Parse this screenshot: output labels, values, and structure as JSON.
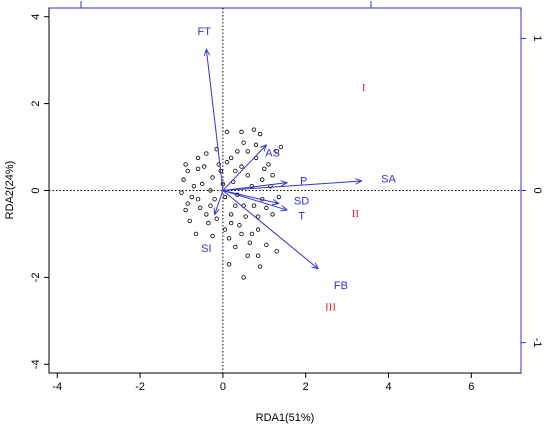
{
  "chart_data": {
    "type": "scatter",
    "title": "",
    "xlabel": "RDA1(51%)",
    "ylabel": "RDA2(24%)",
    "xlim": [
      -4.2,
      7.2
    ],
    "ylim": [
      -4.2,
      4.2
    ],
    "x_ticks": [
      "-4",
      "-2",
      "0",
      "2",
      "4",
      "6"
    ],
    "y_ticks": [
      "-4",
      "-2",
      "0",
      "2",
      "4"
    ],
    "right_axis": {
      "range": [
        -1.2,
        1.2
      ],
      "ticks": [
        "-1",
        "0",
        "1"
      ],
      "color": "#3333cc"
    },
    "top_axis_color": "#3333cc",
    "reference_lines": {
      "x0": true,
      "y0": true,
      "style": "dotted"
    },
    "colors": {
      "points": "#000000",
      "vectors": "#3333cc",
      "groups": "#dd2222"
    },
    "vectors": [
      {
        "name": "FT",
        "x": -0.4,
        "y": 3.25,
        "lx": -0.45,
        "ly": 3.65
      },
      {
        "name": "AS",
        "x": 1.05,
        "y": 1.05,
        "lx": 1.2,
        "ly": 0.85
      },
      {
        "name": "SA",
        "x": 3.35,
        "y": 0.22,
        "lx": 4.0,
        "ly": 0.25
      },
      {
        "name": "P",
        "x": 1.55,
        "y": 0.18,
        "lx": 1.95,
        "ly": 0.2
      },
      {
        "name": "SD",
        "x": 1.35,
        "y": -0.3,
        "lx": 1.9,
        "ly": -0.25
      },
      {
        "name": "T",
        "x": 1.55,
        "y": -0.45,
        "lx": 1.9,
        "ly": -0.6
      },
      {
        "name": "FB",
        "x": 2.3,
        "y": -1.8,
        "lx": 2.85,
        "ly": -2.2
      },
      {
        "name": "SI",
        "x": -0.2,
        "y": -0.55,
        "lx": -0.4,
        "ly": -1.35
      }
    ],
    "groups": [
      {
        "name": "I",
        "x": 3.4,
        "y": 2.35
      },
      {
        "name": "II",
        "x": 3.2,
        "y": -0.55
      },
      {
        "name": "III",
        "x": 2.6,
        "y": -2.7
      }
    ],
    "points": [
      [
        0.5,
        1.1
      ],
      [
        0.35,
        0.9
      ],
      [
        0.8,
        1.05
      ],
      [
        0.2,
        0.75
      ],
      [
        -0.1,
        0.6
      ],
      [
        -0.4,
        0.85
      ],
      [
        -0.6,
        0.5
      ],
      [
        0.1,
        1.35
      ],
      [
        0.75,
        1.4
      ],
      [
        1.1,
        0.6
      ],
      [
        -0.25,
        0.3
      ],
      [
        -0.85,
        0.45
      ],
      [
        -0.7,
        0.1
      ],
      [
        -1.0,
        -0.05
      ],
      [
        -0.9,
        -0.45
      ],
      [
        -0.6,
        -0.2
      ],
      [
        -0.3,
        -0.35
      ],
      [
        0.2,
        -0.55
      ],
      [
        0.5,
        -0.35
      ],
      [
        0.85,
        -0.6
      ],
      [
        1.2,
        -0.55
      ],
      [
        0.4,
        -0.8
      ],
      [
        0.05,
        -0.9
      ],
      [
        -0.25,
        -1.05
      ],
      [
        -0.8,
        -0.7
      ],
      [
        -0.4,
        -0.55
      ],
      [
        0.7,
        -1.0
      ],
      [
        1.05,
        -1.25
      ],
      [
        0.3,
        -1.3
      ],
      [
        0.6,
        -1.5
      ],
      [
        0.9,
        -1.75
      ],
      [
        0.15,
        -1.7
      ],
      [
        0.5,
        -2.0
      ],
      [
        0.25,
        0.2
      ],
      [
        0.6,
        0.35
      ],
      [
        0.95,
        0.25
      ],
      [
        -0.5,
        0.15
      ],
      [
        0.05,
        -0.15
      ],
      [
        0.35,
        -0.1
      ],
      [
        -0.15,
        0.95
      ],
      [
        0.45,
        0.55
      ],
      [
        -0.35,
        -0.75
      ],
      [
        0.8,
        0.75
      ],
      [
        1.3,
        0.9
      ],
      [
        -0.05,
        0.45
      ],
      [
        -0.65,
        -1.0
      ],
      [
        0.45,
        1.35
      ],
      [
        1.4,
        1.0
      ],
      [
        1.3,
        -1.4
      ],
      [
        0.65,
        -1.2
      ],
      [
        -0.95,
        0.25
      ],
      [
        -0.2,
        -0.2
      ],
      [
        0.95,
        -0.2
      ],
      [
        1.15,
        0.1
      ],
      [
        0.3,
        0.45
      ],
      [
        -0.45,
        0.55
      ],
      [
        1.0,
        0.5
      ],
      [
        0.15,
        -1.1
      ],
      [
        -0.75,
        -0.15
      ],
      [
        -0.55,
        -0.4
      ],
      [
        0.55,
        -0.6
      ],
      [
        0.85,
        -0.9
      ],
      [
        0.0,
        0.15
      ],
      [
        -0.3,
        0.0
      ],
      [
        0.7,
        0.1
      ],
      [
        0.1,
        0.65
      ],
      [
        0.75,
        -0.35
      ],
      [
        1.05,
        -0.4
      ],
      [
        -0.85,
        -0.3
      ],
      [
        1.2,
        0.35
      ],
      [
        0.45,
        -1.0
      ],
      [
        0.3,
        -0.35
      ],
      [
        -0.6,
        0.75
      ],
      [
        0.9,
        1.3
      ],
      [
        -0.15,
        -0.65
      ],
      [
        0.2,
        -0.75
      ],
      [
        0.6,
        0.9
      ],
      [
        -0.9,
        0.6
      ],
      [
        1.35,
        -0.15
      ],
      [
        0.85,
        -1.5
      ]
    ]
  }
}
